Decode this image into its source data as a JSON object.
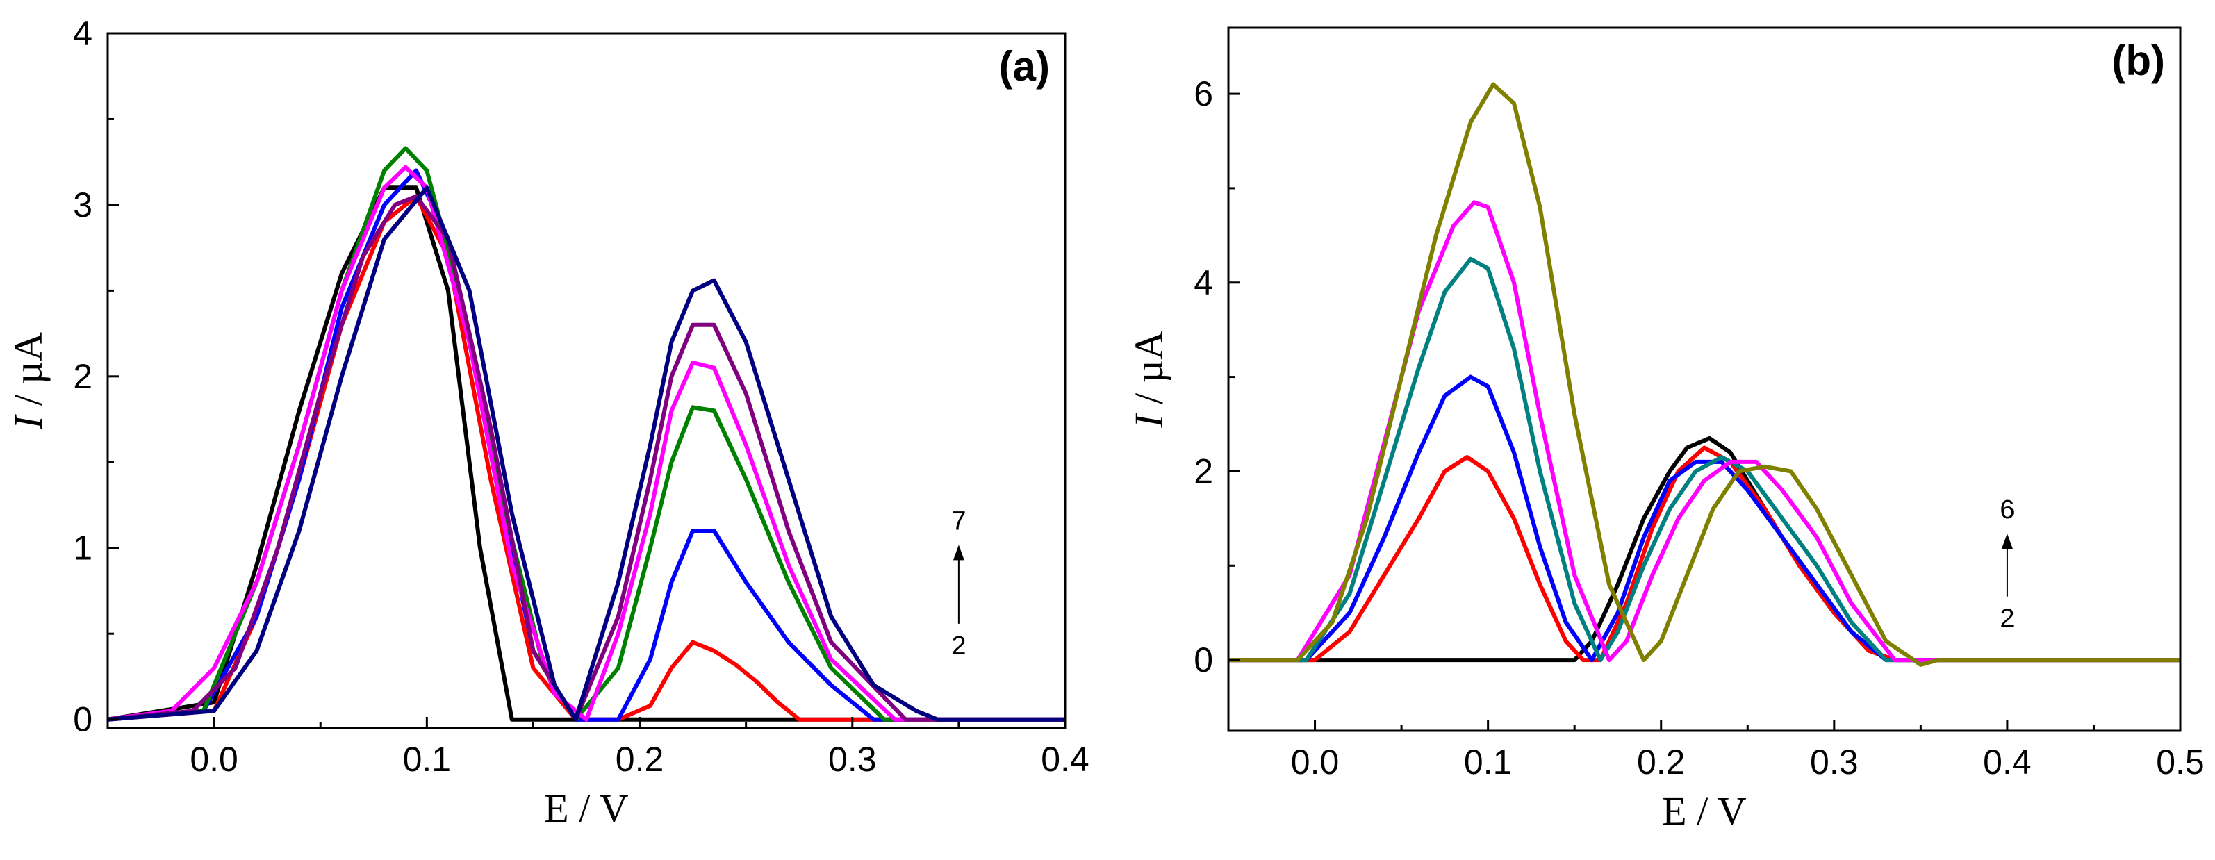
{
  "chart_data": [
    {
      "type": "line",
      "panel_label": "(a)",
      "xlabel": "E / V",
      "ylabel_italic": "I",
      "ylabel_rest": " / µA",
      "xlim": [
        -0.05,
        0.4
      ],
      "ylim": [
        -0.05,
        4.0
      ],
      "xticks": [
        {
          "value": 0.0,
          "label": "0.0"
        },
        {
          "value": 0.1,
          "label": "0.1"
        },
        {
          "value": 0.2,
          "label": "0.2"
        },
        {
          "value": 0.3,
          "label": "0.3"
        },
        {
          "value": 0.4,
          "label": "0.4"
        }
      ],
      "yticks": [
        {
          "value": 0,
          "label": "0"
        },
        {
          "value": 1,
          "label": "1"
        },
        {
          "value": 2,
          "label": "2"
        },
        {
          "value": 3,
          "label": "3"
        },
        {
          "value": 4,
          "label": "4"
        }
      ],
      "annotation": {
        "top": "7",
        "bottom": "2",
        "x": 0.35,
        "y_top": 1.05,
        "y_bottom": 0.38
      },
      "grid": false,
      "series": [
        {
          "color": "#000000",
          "x": [
            -0.05,
            0.0,
            0.02,
            0.04,
            0.06,
            0.08,
            0.095,
            0.11,
            0.125,
            0.14,
            0.4
          ],
          "y": [
            0,
            0.1,
            0.9,
            1.8,
            2.6,
            3.1,
            3.1,
            2.5,
            1.0,
            0,
            0
          ]
        },
        {
          "color": "#ff0000",
          "x": [
            -0.05,
            0.0,
            0.02,
            0.04,
            0.06,
            0.08,
            0.095,
            0.11,
            0.13,
            0.15,
            0.17,
            0.19,
            0.205,
            0.215,
            0.225,
            0.235,
            0.245,
            0.255,
            0.265,
            0.275,
            0.4
          ],
          "y": [
            0,
            0.05,
            0.6,
            1.4,
            2.3,
            2.9,
            3.05,
            2.7,
            1.4,
            0.3,
            0,
            0,
            0.08,
            0.3,
            0.45,
            0.4,
            0.32,
            0.22,
            0.1,
            0,
            0
          ]
        },
        {
          "color": "#0000ff",
          "x": [
            -0.05,
            -0.005,
            0.02,
            0.04,
            0.06,
            0.08,
            0.095,
            0.11,
            0.13,
            0.15,
            0.17,
            0.19,
            0.205,
            0.215,
            0.225,
            0.235,
            0.25,
            0.27,
            0.29,
            0.31,
            0.4
          ],
          "y": [
            0,
            0.05,
            0.6,
            1.4,
            2.4,
            3.0,
            3.2,
            2.8,
            1.6,
            0.4,
            0,
            0,
            0.35,
            0.8,
            1.1,
            1.1,
            0.8,
            0.45,
            0.2,
            0,
            0
          ]
        },
        {
          "color": "#008000",
          "x": [
            -0.05,
            -0.005,
            0.02,
            0.04,
            0.06,
            0.08,
            0.09,
            0.1,
            0.115,
            0.135,
            0.155,
            0.17,
            0.19,
            0.205,
            0.215,
            0.225,
            0.235,
            0.25,
            0.27,
            0.29,
            0.315,
            0.4
          ],
          "y": [
            0,
            0.05,
            0.8,
            1.6,
            2.5,
            3.2,
            3.33,
            3.2,
            2.5,
            1.3,
            0.3,
            0,
            0.3,
            1.0,
            1.5,
            1.82,
            1.8,
            1.4,
            0.8,
            0.3,
            0,
            0
          ]
        },
        {
          "color": "#ff00ff",
          "x": [
            -0.05,
            -0.02,
            0.0,
            0.02,
            0.04,
            0.06,
            0.08,
            0.09,
            0.1,
            0.12,
            0.14,
            0.16,
            0.175,
            0.19,
            0.205,
            0.215,
            0.225,
            0.235,
            0.25,
            0.27,
            0.29,
            0.32,
            0.4
          ],
          "y": [
            0,
            0.05,
            0.3,
            0.8,
            1.6,
            2.5,
            3.1,
            3.22,
            3.1,
            2.2,
            0.9,
            0.15,
            0,
            0.5,
            1.2,
            1.8,
            2.08,
            2.05,
            1.6,
            0.9,
            0.35,
            0,
            0
          ]
        },
        {
          "color": "#800080",
          "x": [
            -0.05,
            -0.01,
            0.01,
            0.03,
            0.05,
            0.07,
            0.085,
            0.095,
            0.11,
            0.13,
            0.15,
            0.17,
            0.19,
            0.205,
            0.215,
            0.225,
            0.235,
            0.25,
            0.27,
            0.29,
            0.325,
            0.4
          ],
          "y": [
            0,
            0.05,
            0.3,
            1.0,
            1.9,
            2.7,
            3.0,
            3.05,
            2.8,
            1.7,
            0.4,
            0,
            0.6,
            1.4,
            2.0,
            2.3,
            2.3,
            1.9,
            1.1,
            0.45,
            0,
            0
          ]
        },
        {
          "color": "#000080",
          "x": [
            -0.05,
            0.0,
            0.02,
            0.04,
            0.06,
            0.08,
            0.1,
            0.12,
            0.14,
            0.16,
            0.17,
            0.19,
            0.205,
            0.215,
            0.225,
            0.235,
            0.25,
            0.27,
            0.29,
            0.31,
            0.33,
            0.34,
            0.4
          ],
          "y": [
            0,
            0.05,
            0.4,
            1.1,
            2.0,
            2.8,
            3.1,
            2.5,
            1.2,
            0.2,
            0,
            0.8,
            1.6,
            2.2,
            2.5,
            2.56,
            2.2,
            1.4,
            0.6,
            0.2,
            0.05,
            0,
            0
          ]
        }
      ]
    },
    {
      "type": "line",
      "panel_label": "(b)",
      "xlabel": "E / V",
      "ylabel_italic": "I",
      "ylabel_rest": " / µA",
      "xlim": [
        -0.05,
        0.5
      ],
      "ylim": [
        -0.75,
        6.7
      ],
      "xticks": [
        {
          "value": 0.0,
          "label": "0.0"
        },
        {
          "value": 0.1,
          "label": "0.1"
        },
        {
          "value": 0.2,
          "label": "0.2"
        },
        {
          "value": 0.3,
          "label": "0.3"
        },
        {
          "value": 0.4,
          "label": "0.4"
        },
        {
          "value": 0.5,
          "label": "0.5"
        }
      ],
      "yticks": [
        {
          "value": 0,
          "label": "0"
        },
        {
          "value": 2,
          "label": "2"
        },
        {
          "value": 4,
          "label": "4"
        },
        {
          "value": 6,
          "label": "6"
        }
      ],
      "annotation": {
        "top": "6",
        "bottom": "2",
        "x": 0.4,
        "y_top": 1.4,
        "y_bottom": 0.35
      },
      "grid": false,
      "series": [
        {
          "color": "#000000",
          "x": [
            -0.05,
            0.15,
            0.16,
            0.175,
            0.19,
            0.205,
            0.215,
            0.228,
            0.24,
            0.26,
            0.28,
            0.3,
            0.32,
            0.335,
            0.5
          ],
          "y": [
            0,
            0,
            0.2,
            0.8,
            1.5,
            2.0,
            2.25,
            2.35,
            2.2,
            1.6,
            1.0,
            0.5,
            0.1,
            0,
            0
          ]
        },
        {
          "color": "#ff0000",
          "x": [
            -0.05,
            0.0,
            0.02,
            0.04,
            0.06,
            0.075,
            0.088,
            0.1,
            0.115,
            0.13,
            0.145,
            0.155,
            0.165,
            0.18,
            0.195,
            0.21,
            0.225,
            0.24,
            0.26,
            0.28,
            0.3,
            0.32,
            0.335,
            0.5
          ],
          "y": [
            0,
            0,
            0.3,
            0.9,
            1.5,
            2.0,
            2.15,
            2.0,
            1.5,
            0.8,
            0.2,
            0,
            0,
            0.6,
            1.4,
            2.0,
            2.25,
            2.1,
            1.6,
            1.0,
            0.5,
            0.1,
            0,
            0
          ]
        },
        {
          "color": "#0000ff",
          "x": [
            -0.05,
            -0.005,
            0.02,
            0.04,
            0.06,
            0.075,
            0.09,
            0.1,
            0.115,
            0.13,
            0.145,
            0.16,
            0.175,
            0.19,
            0.205,
            0.22,
            0.235,
            0.25,
            0.27,
            0.29,
            0.31,
            0.33,
            0.5
          ],
          "y": [
            0,
            0,
            0.5,
            1.3,
            2.2,
            2.8,
            3.0,
            2.9,
            2.2,
            1.2,
            0.4,
            0,
            0.5,
            1.3,
            1.9,
            2.1,
            2.1,
            1.8,
            1.3,
            0.8,
            0.3,
            0,
            0
          ]
        },
        {
          "color": "#008080",
          "x": [
            -0.05,
            -0.005,
            0.02,
            0.04,
            0.06,
            0.075,
            0.09,
            0.1,
            0.115,
            0.13,
            0.15,
            0.165,
            0.175,
            0.19,
            0.205,
            0.22,
            0.235,
            0.25,
            0.27,
            0.29,
            0.31,
            0.33,
            0.5
          ],
          "y": [
            0,
            0,
            0.7,
            1.9,
            3.1,
            3.9,
            4.25,
            4.15,
            3.3,
            2.0,
            0.6,
            0,
            0.3,
            1.0,
            1.6,
            2.0,
            2.15,
            2.0,
            1.5,
            1.0,
            0.4,
            0,
            0
          ]
        },
        {
          "color": "#ff00ff",
          "x": [
            -0.05,
            -0.01,
            0.02,
            0.04,
            0.06,
            0.08,
            0.092,
            0.1,
            0.115,
            0.13,
            0.15,
            0.17,
            0.18,
            0.195,
            0.21,
            0.225,
            0.24,
            0.255,
            0.27,
            0.29,
            0.31,
            0.335,
            0.5
          ],
          "y": [
            0,
            0,
            0.9,
            2.3,
            3.7,
            4.6,
            4.85,
            4.8,
            4.0,
            2.6,
            0.9,
            0,
            0.2,
            0.9,
            1.5,
            1.9,
            2.1,
            2.1,
            1.8,
            1.3,
            0.6,
            0,
            0
          ]
        },
        {
          "color": "#808000",
          "x": [
            -0.05,
            -0.01,
            0.01,
            0.03,
            0.05,
            0.07,
            0.09,
            0.103,
            0.115,
            0.13,
            0.15,
            0.17,
            0.19,
            0.2,
            0.215,
            0.23,
            0.245,
            0.26,
            0.275,
            0.29,
            0.31,
            0.33,
            0.35,
            0.36,
            0.5
          ],
          "y": [
            0,
            0,
            0.4,
            1.5,
            3.0,
            4.5,
            5.7,
            6.1,
            5.9,
            4.8,
            2.6,
            0.8,
            0,
            0.2,
            0.9,
            1.6,
            2.0,
            2.05,
            2.0,
            1.6,
            0.9,
            0.2,
            -0.05,
            0,
            0
          ]
        }
      ]
    }
  ]
}
